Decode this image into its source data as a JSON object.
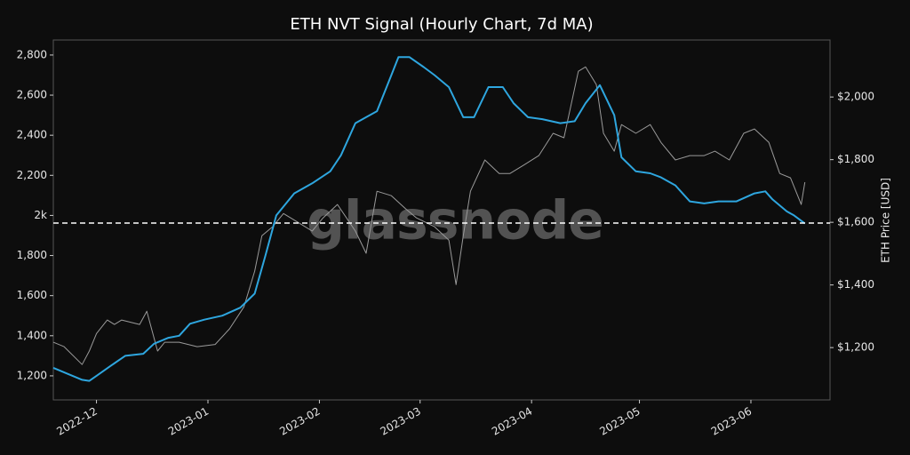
{
  "chart_data": {
    "type": "line",
    "title": "ETH NVT Signal (Hourly Chart, 7d MA)",
    "y2_label": "ETH Price [USD]",
    "watermark": "glassnode",
    "xlim": [
      -12,
      204
    ],
    "xticks": [
      {
        "value": 0,
        "label": "2022-12"
      },
      {
        "value": 31,
        "label": "2023-01"
      },
      {
        "value": 62,
        "label": "2023-02"
      },
      {
        "value": 90,
        "label": "2023-03"
      },
      {
        "value": 121,
        "label": "2023-04"
      },
      {
        "value": 151,
        "label": "2023-05"
      },
      {
        "value": 182,
        "label": "2023-06"
      }
    ],
    "ylim": [
      1080,
      2875
    ],
    "yticks": [
      {
        "value": 1200,
        "label": "1,200"
      },
      {
        "value": 1400,
        "label": "1,400"
      },
      {
        "value": 1600,
        "label": "1,600"
      },
      {
        "value": 1800,
        "label": "1,800"
      },
      {
        "value": 2000,
        "label": "2k"
      },
      {
        "value": 2200,
        "label": "2,200"
      },
      {
        "value": 2400,
        "label": "2,400"
      },
      {
        "value": 2600,
        "label": "2,600"
      },
      {
        "value": 2800,
        "label": "2,800"
      }
    ],
    "y2lim": [
      1033,
      2182
    ],
    "y2ticks": [
      {
        "value": 1200,
        "label": "$1,200"
      },
      {
        "value": 1400,
        "label": "$1,400"
      },
      {
        "value": 1600,
        "label": "$1,600"
      },
      {
        "value": 1800,
        "label": "$1,800"
      },
      {
        "value": 2000,
        "label": "$2,000"
      }
    ],
    "reference_line": {
      "value": 1962,
      "color": "#ffffff"
    },
    "series": [
      {
        "color": "#9a9a9a",
        "axis": "y2",
        "x": [
          -12,
          -9,
          -4,
          -2,
          0,
          3,
          5,
          7,
          12,
          14,
          17,
          19,
          23,
          28,
          33,
          37,
          41,
          44,
          46,
          49,
          52,
          56,
          60,
          63,
          67,
          72,
          75,
          78,
          82,
          86,
          89,
          94,
          98,
          100,
          102,
          104,
          108,
          112,
          115,
          119,
          123,
          127,
          130,
          134,
          136,
          139,
          141,
          144,
          146,
          150,
          154,
          157,
          161,
          165,
          169,
          172,
          176,
          180,
          183,
          187,
          190,
          193,
          196,
          197
        ],
        "values": [
          1217,
          1203,
          1146,
          1189,
          1245,
          1288,
          1274,
          1288,
          1274,
          1316,
          1189,
          1217,
          1217,
          1203,
          1210,
          1260,
          1330,
          1444,
          1557,
          1586,
          1628,
          1600,
          1572,
          1614,
          1657,
          1572,
          1501,
          1699,
          1685,
          1643,
          1614,
          1586,
          1543,
          1401,
          1557,
          1699,
          1799,
          1756,
          1756,
          1784,
          1813,
          1884,
          1870,
          2082,
          2096,
          2040,
          1884,
          1827,
          1912,
          1884,
          1912,
          1855,
          1799,
          1813,
          1813,
          1827,
          1799,
          1884,
          1898,
          1855,
          1756,
          1742,
          1657,
          1728
        ]
      },
      {
        "color": "#2ea6df",
        "axis": "y",
        "x": [
          -12,
          -8,
          -4,
          -2,
          0,
          4,
          8,
          13,
          16,
          20,
          23,
          26,
          30,
          35,
          40,
          44,
          47,
          50,
          55,
          60,
          65,
          68,
          72,
          75,
          78,
          82,
          84,
          87,
          91,
          94,
          98,
          102,
          105,
          109,
          113,
          116,
          120,
          124,
          129,
          133,
          136,
          140,
          144,
          146,
          150,
          154,
          157,
          161,
          165,
          169,
          173,
          178,
          183,
          186,
          188,
          192,
          194,
          197
        ],
        "values": [
          1240,
          1210,
          1180,
          1175,
          1200,
          1250,
          1300,
          1310,
          1360,
          1390,
          1400,
          1460,
          1480,
          1500,
          1540,
          1610,
          1800,
          2000,
          2110,
          2160,
          2220,
          2300,
          2460,
          2490,
          2520,
          2700,
          2790,
          2790,
          2740,
          2700,
          2640,
          2490,
          2490,
          2640,
          2640,
          2560,
          2490,
          2480,
          2460,
          2470,
          2560,
          2650,
          2500,
          2290,
          2220,
          2210,
          2190,
          2150,
          2070,
          2060,
          2070,
          2070,
          2110,
          2120,
          2080,
          2020,
          2000,
          1960
        ]
      }
    ]
  }
}
